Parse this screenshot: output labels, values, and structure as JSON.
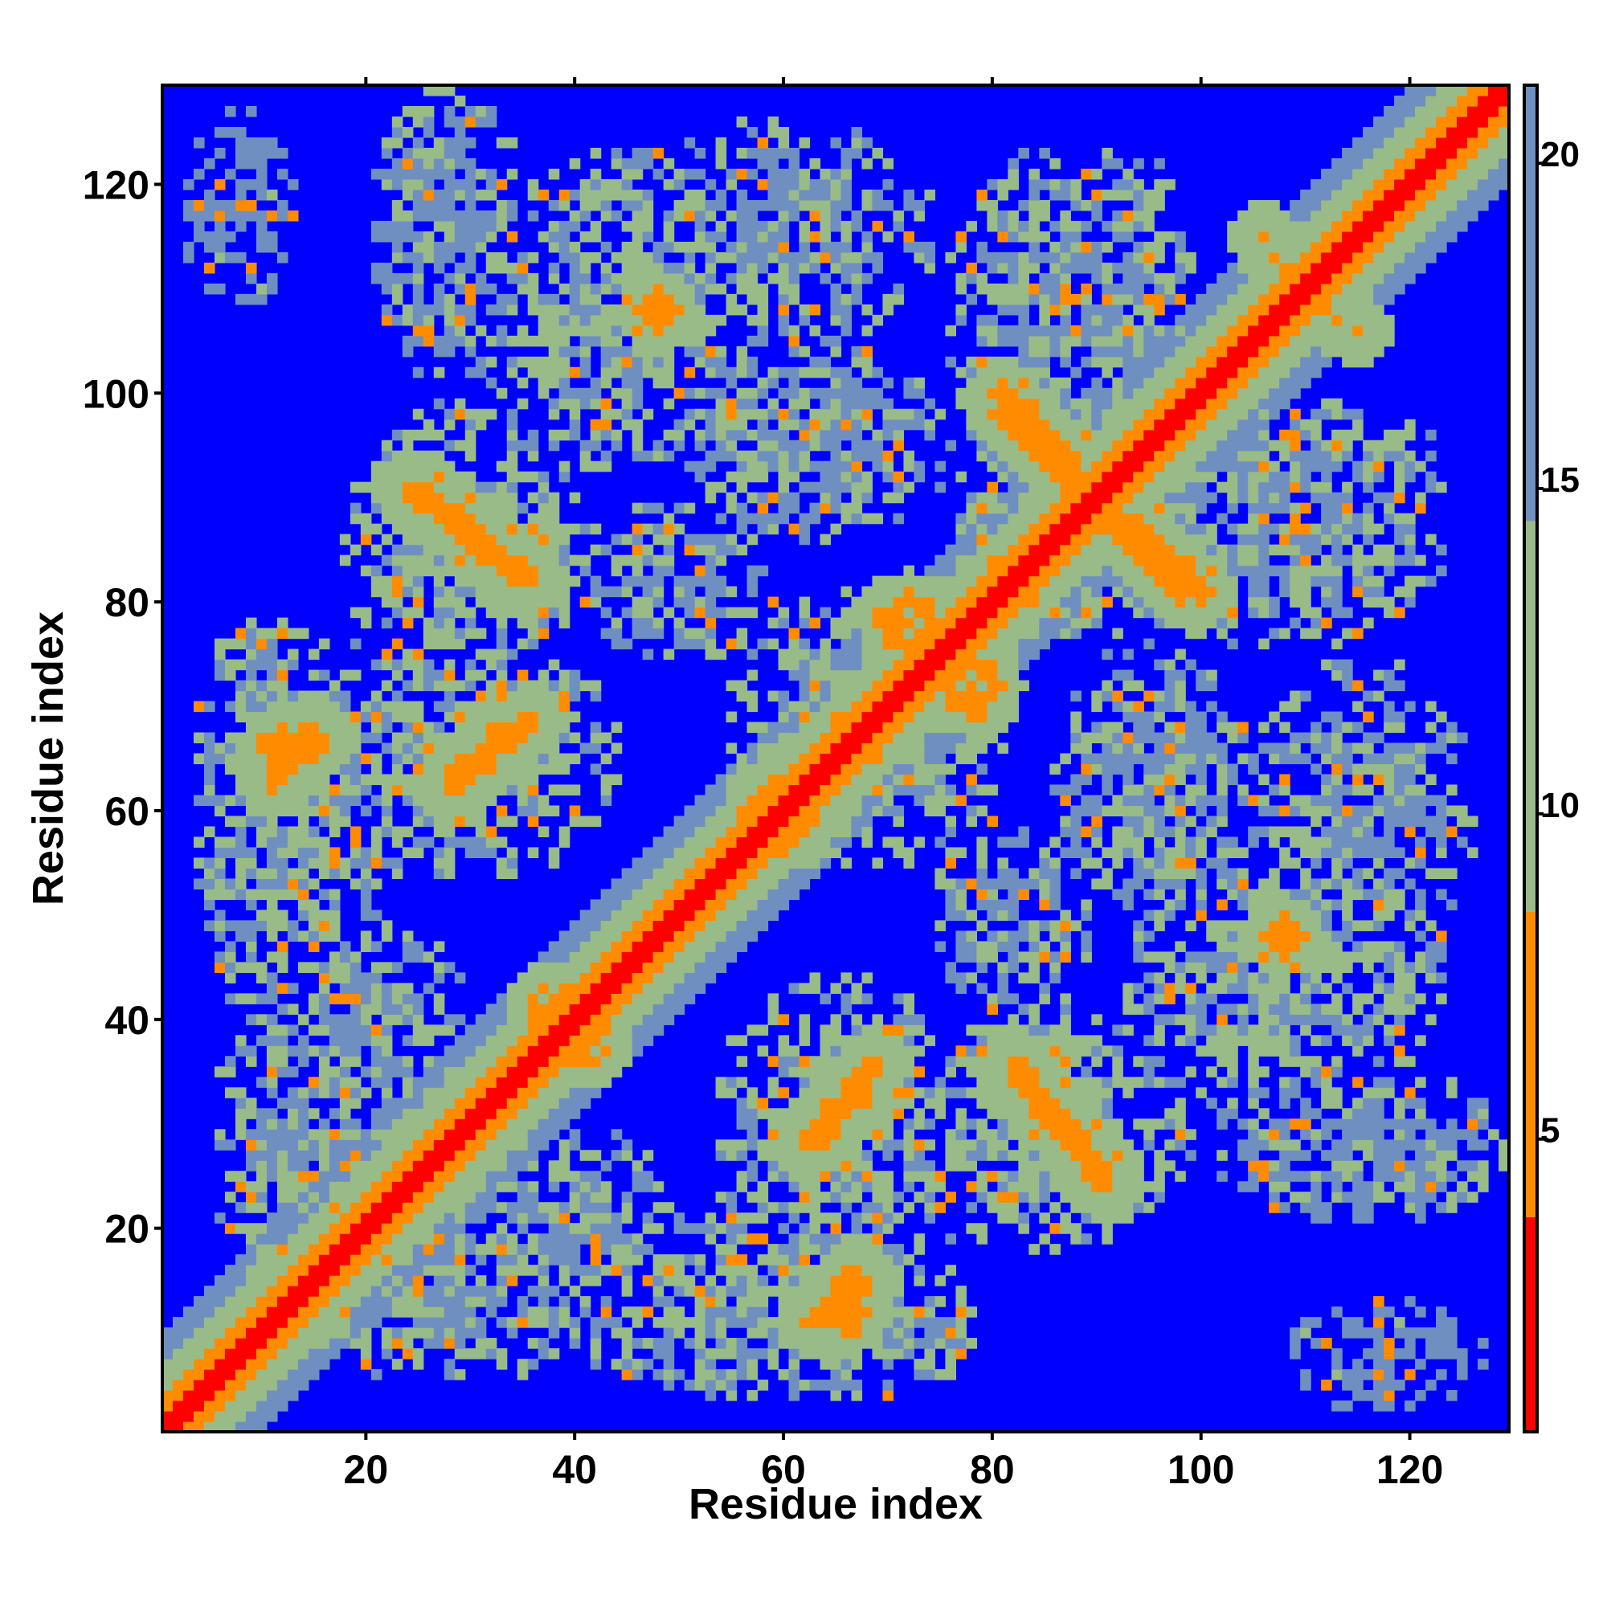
{
  "chart_data": {
    "type": "heatmap",
    "description_free": true,
    "xlabel": "Residue index",
    "ylabel": "Residue index",
    "x_range": [
      1,
      129
    ],
    "y_range": [
      1,
      129
    ],
    "x_ticks": [
      20,
      40,
      60,
      80,
      100,
      120
    ],
    "y_ticks": [
      20,
      40,
      60,
      80,
      100,
      120
    ],
    "x_tick_labels": [
      "20",
      "40",
      "60",
      "80",
      "100",
      "120"
    ],
    "y_tick_labels": [
      "20",
      "40",
      "60",
      "80",
      "100",
      "120"
    ],
    "n_residues": 129,
    "grid": false,
    "colorbar": {
      "position": "right",
      "range": [
        0.5,
        21.2
      ],
      "ticks": [
        5,
        10,
        15,
        20
      ],
      "tick_labels": [
        "5",
        "10",
        "15",
        "20"
      ],
      "colors": {
        "very_close": "#ff0000",
        "close": "#ff8c00",
        "medium": "#99bb88",
        "far": "#6f8fc0",
        "background": "#0000ff"
      }
    },
    "diagonal_band": {
      "red_width": 1.5,
      "orange_width": 3,
      "green_width": 6,
      "blue_width": 9
    },
    "contact_features": [
      {
        "kind": "line",
        "from": [
          24,
          91
        ],
        "to": [
          35,
          82
        ],
        "width": 1.3,
        "value": 6.5
      },
      {
        "kind": "line",
        "from": [
          82,
          36
        ],
        "to": [
          91,
          25
        ],
        "width": 1.3,
        "value": 6.5
      },
      {
        "kind": "line",
        "from": [
          81,
          100
        ],
        "to": [
          90,
          90
        ],
        "width": 1.3,
        "value": 6.0
      },
      {
        "kind": "line",
        "from": [
          89,
          90
        ],
        "to": [
          98,
          81
        ],
        "width": 1.3,
        "value": 6.0
      },
      {
        "kind": "line",
        "from": [
          28,
          62
        ],
        "to": [
          36,
          69
        ],
        "width": 1.3,
        "value": 6.5
      },
      {
        "kind": "line",
        "from": [
          63,
          28
        ],
        "to": [
          69,
          36
        ],
        "width": 1.3,
        "value": 6.5
      },
      {
        "kind": "line",
        "from": [
          11,
          63
        ],
        "to": [
          15,
          68
        ],
        "width": 1.2,
        "value": 6.5
      },
      {
        "kind": "line",
        "from": [
          63,
          11
        ],
        "to": [
          67,
          16
        ],
        "width": 1.2,
        "value": 6.5
      },
      {
        "kind": "line",
        "from": [
          106,
          115
        ],
        "to": [
          110,
          108
        ],
        "width": 1.0,
        "value": 8.0
      },
      {
        "kind": "blob",
        "center": [
          60,
          59
        ],
        "radius": 3,
        "value": 6.0
      },
      {
        "kind": "blob",
        "center": [
          72,
          78
        ],
        "radius": 3,
        "value": 6.5
      },
      {
        "kind": "blob",
        "center": [
          38,
          41
        ],
        "radius": 2.5,
        "value": 6.5
      },
      {
        "kind": "blob",
        "center": [
          108,
          48
        ],
        "radius": 2,
        "value": 7.0
      },
      {
        "kind": "blob",
        "center": [
          66,
          12
        ],
        "radius": 2,
        "value": 6.5
      }
    ],
    "contact_regions": [
      {
        "center": [
          45,
          108
        ],
        "radius": [
          15,
          16
        ],
        "value": 14
      },
      {
        "center": [
          85,
          108
        ],
        "radius": [
          10,
          16
        ],
        "value": 15
      },
      {
        "center": [
          30,
          85
        ],
        "radius": [
          13,
          12
        ],
        "value": 13
      },
      {
        "center": [
          50,
          82
        ],
        "radius": [
          10,
          8
        ],
        "value": 15
      },
      {
        "center": [
          15,
          60
        ],
        "radius": [
          9,
          18
        ],
        "value": 14
      },
      {
        "center": [
          33,
          65
        ],
        "radius": [
          8,
          9
        ],
        "value": 12
      },
      {
        "center": [
          67,
          70
        ],
        "radius": [
          13,
          12
        ],
        "value": 13
      },
      {
        "center": [
          88,
          88
        ],
        "radius": [
          12,
          12
        ],
        "value": 13
      },
      {
        "center": [
          110,
          92
        ],
        "radius": [
          14,
          8
        ],
        "value": 15
      },
      {
        "center": [
          115,
          60
        ],
        "radius": [
          12,
          15
        ],
        "value": 15
      },
      {
        "center": [
          95,
          62
        ],
        "radius": [
          10,
          15
        ],
        "value": 15
      },
      {
        "center": [
          65,
          30
        ],
        "radius": [
          12,
          15
        ],
        "value": 14
      },
      {
        "center": [
          88,
          30
        ],
        "radius": [
          12,
          12
        ],
        "value": 14
      },
      {
        "center": [
          60,
          10
        ],
        "radius": [
          20,
          7
        ],
        "value": 15
      },
      {
        "center": [
          115,
          28
        ],
        "radius": [
          15,
          8
        ],
        "value": 16
      },
      {
        "center": [
          15,
          28
        ],
        "radius": [
          10,
          18
        ],
        "value": 15
      },
      {
        "center": [
          40,
          20
        ],
        "radius": [
          10,
          10
        ],
        "value": 15
      },
      {
        "center": [
          118,
          8
        ],
        "radius": [
          10,
          6
        ],
        "value": 18
      }
    ]
  }
}
